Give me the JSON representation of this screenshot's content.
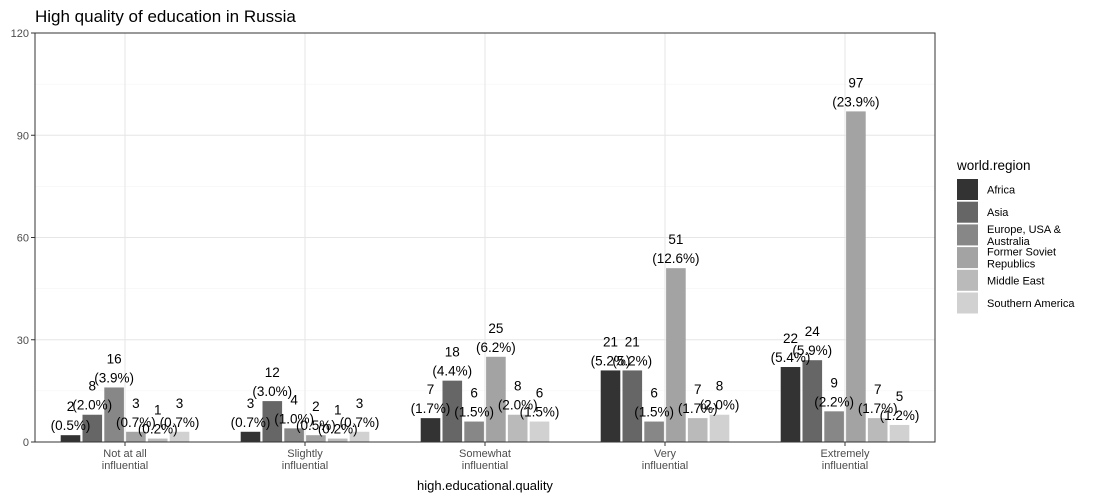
{
  "chart_data": {
    "type": "bar",
    "title": "High quality of education in Russia",
    "xlabel": "high.educational.quality",
    "ylabel": "",
    "ylim": [
      0,
      120
    ],
    "yticks": [
      0,
      30,
      60,
      90,
      120
    ],
    "grid": true,
    "legend_position": "right",
    "legend_title": "world.region",
    "categories": [
      [
        "Not at all",
        "influential"
      ],
      [
        "Slightly",
        "influential"
      ],
      [
        "Somewhat",
        "influential"
      ],
      [
        "Very",
        "influential"
      ],
      [
        "Extremely",
        "influential"
      ]
    ],
    "series": [
      {
        "name": [
          "Africa"
        ],
        "color": "#333333",
        "values": [
          2,
          3,
          7,
          21,
          22
        ],
        "pct": [
          "(0.5%)",
          "(0.7%)",
          "(1.7%)",
          "(5.2%)",
          "(5.4%)"
        ]
      },
      {
        "name": [
          "Asia"
        ],
        "color": "#666666",
        "values": [
          8,
          12,
          18,
          21,
          24
        ],
        "pct": [
          "(2.0%)",
          "(3.0%)",
          "(4.4%)",
          "(5.2%)",
          "(5.9%)"
        ]
      },
      {
        "name": [
          "Europe, USA &",
          "Australia"
        ],
        "color": "#878787",
        "values": [
          16,
          4,
          6,
          6,
          9
        ],
        "pct": [
          "(3.9%)",
          "(1.0%)",
          "(1.5%)",
          "(1.5%)",
          "(2.2%)"
        ]
      },
      {
        "name": [
          "Former Soviet",
          "Republics"
        ],
        "color": "#a3a3a3",
        "values": [
          3,
          2,
          25,
          51,
          97
        ],
        "pct": [
          "(0.7%)",
          "(0.5%)",
          "(6.2%)",
          "(12.6%)",
          "(23.9%)"
        ]
      },
      {
        "name": [
          "Middle East"
        ],
        "color": "#bababa",
        "values": [
          1,
          1,
          8,
          7,
          7
        ],
        "pct": [
          "(0.2%)",
          "(0.2%)",
          "(2.0%)",
          "(1.7%)",
          "(1.7%)"
        ]
      },
      {
        "name": [
          "Southern America"
        ],
        "color": "#d1d1d1",
        "values": [
          3,
          3,
          6,
          8,
          5
        ],
        "pct": [
          "(0.7%)",
          "(0.7%)",
          "(1.5%)",
          "(2.0%)",
          "(1.2%)"
        ]
      }
    ]
  }
}
